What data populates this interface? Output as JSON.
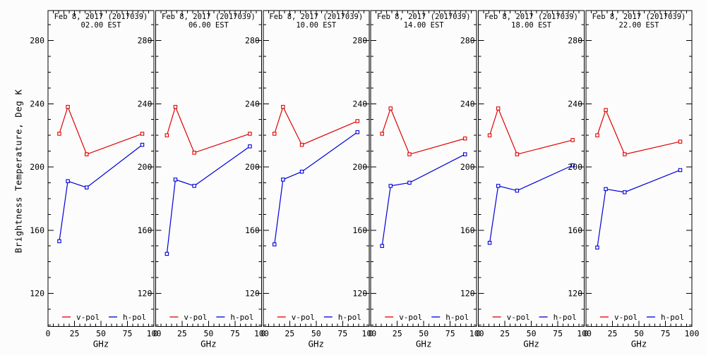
{
  "chart_data": {
    "type": "line",
    "title_date": "Feb  8, 2017 (2017039)",
    "ylabel": "Brightness Temperature, Deg K",
    "xlabel": "GHz",
    "x_tick_labels": [
      "0",
      "25",
      "50",
      "75",
      "100"
    ],
    "x_ticks": [
      0,
      25,
      50,
      75,
      100
    ],
    "y_ticks": [
      120,
      160,
      200,
      240,
      280
    ],
    "xlim": [
      0,
      100
    ],
    "ylim": [
      98,
      299
    ],
    "x_minor_step": 5,
    "y_minor_step": 10,
    "grid": false,
    "legend_position": "bottom-inside",
    "x": [
      10.65,
      18.7,
      36.5,
      89
    ],
    "legend": [
      "v-pol",
      "h-pol"
    ],
    "colors": {
      "v_pol": "#e00000",
      "h_pol": "#0000d8",
      "axis": "#000000",
      "background": "#fcfcfc"
    },
    "panels": [
      {
        "time": "02.00 EST",
        "series": [
          {
            "name": "v-pol",
            "values": [
              221,
              238,
              208,
              221
            ]
          },
          {
            "name": "h-pol",
            "values": [
              153,
              191,
              187,
              214
            ]
          }
        ]
      },
      {
        "time": "06.00 EST",
        "series": [
          {
            "name": "v-pol",
            "values": [
              220,
              238,
              209,
              221
            ]
          },
          {
            "name": "h-pol",
            "values": [
              145,
              192,
              188,
              213
            ]
          }
        ]
      },
      {
        "time": "10.00 EST",
        "series": [
          {
            "name": "v-pol",
            "values": [
              221,
              238,
              214,
              229
            ]
          },
          {
            "name": "h-pol",
            "values": [
              151,
              192,
              197,
              222
            ]
          }
        ]
      },
      {
        "time": "14.00 EST",
        "series": [
          {
            "name": "v-pol",
            "values": [
              221,
              237,
              208,
              218
            ]
          },
          {
            "name": "h-pol",
            "values": [
              150,
              188,
              190,
              208
            ]
          }
        ]
      },
      {
        "time": "18.00 EST",
        "series": [
          {
            "name": "v-pol",
            "values": [
              220,
              237,
              208,
              217
            ]
          },
          {
            "name": "h-pol",
            "values": [
              152,
              188,
              185,
              201
            ]
          }
        ]
      },
      {
        "time": "22.00 EST",
        "series": [
          {
            "name": "v-pol",
            "values": [
              220,
              236,
              208,
              216
            ]
          },
          {
            "name": "h-pol",
            "values": [
              149,
              186,
              184,
              198
            ]
          }
        ]
      }
    ]
  }
}
